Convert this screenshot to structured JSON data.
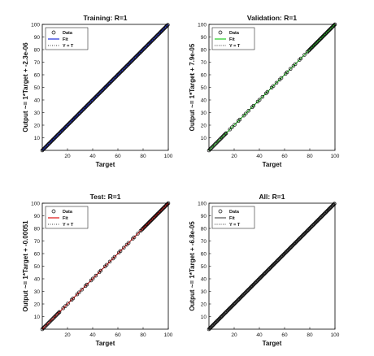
{
  "figure": {
    "background": "#ffffff"
  },
  "chart_data": [
    {
      "type": "scatter",
      "title": "Training: R=1",
      "xlabel": "Target",
      "ylabel": "Output ~= 1*Target + -2.3e-06",
      "xlim": [
        0,
        100
      ],
      "ylim": [
        0,
        100
      ],
      "xticks": [
        20,
        40,
        60,
        80,
        100
      ],
      "yticks": [
        10,
        20,
        30,
        40,
        50,
        60,
        70,
        80,
        90,
        100
      ],
      "grid": false,
      "legend": {
        "placement": "top-left",
        "entries": [
          "Data",
          "Fit",
          "Y = T"
        ]
      },
      "fit_color": "#1f2fdc",
      "fit": {
        "slope": 1,
        "intercept": -2.3e-06
      },
      "data_range": [
        0,
        100
      ],
      "data_density": "dense"
    },
    {
      "type": "scatter",
      "title": "Validation: R=1",
      "xlabel": "Target",
      "ylabel": "Output ~= 1*Target + 7.9e-05",
      "xlim": [
        0,
        100
      ],
      "ylim": [
        0,
        100
      ],
      "xticks": [
        20,
        40,
        60,
        80,
        100
      ],
      "yticks": [
        10,
        20,
        30,
        40,
        50,
        60,
        70,
        80,
        90,
        100
      ],
      "grid": false,
      "legend": {
        "placement": "top-left",
        "entries": [
          "Data",
          "Fit",
          "Y = T"
        ]
      },
      "fit_color": "#22cc22",
      "fit": {
        "slope": 1,
        "intercept": 7.9e-05
      },
      "data_range": [
        0,
        100
      ],
      "data_density": "sparse-mid"
    },
    {
      "type": "scatter",
      "title": "Test: R=1",
      "xlabel": "Target",
      "ylabel": "Output ~= 1*Target + -0.00051",
      "xlim": [
        0,
        100
      ],
      "ylim": [
        0,
        100
      ],
      "xticks": [
        20,
        40,
        60,
        80,
        100
      ],
      "yticks": [
        10,
        20,
        30,
        40,
        50,
        60,
        70,
        80,
        90,
        100
      ],
      "grid": false,
      "legend": {
        "placement": "top-left",
        "entries": [
          "Data",
          "Fit",
          "Y = T"
        ]
      },
      "fit_color": "#e01010",
      "fit": {
        "slope": 1,
        "intercept": -0.00051
      },
      "data_range": [
        0,
        100
      ],
      "data_density": "sparse-mid"
    },
    {
      "type": "scatter",
      "title": "All: R=1",
      "xlabel": "Target",
      "ylabel": "Output ~= 1*Target + -6.8e-05",
      "xlim": [
        0,
        100
      ],
      "ylim": [
        0,
        100
      ],
      "xticks": [
        20,
        40,
        60,
        80,
        100
      ],
      "yticks": [
        10,
        20,
        30,
        40,
        50,
        60,
        70,
        80,
        90,
        100
      ],
      "grid": false,
      "legend": {
        "placement": "top-left",
        "entries": [
          "Data",
          "Fit",
          "Y = T"
        ]
      },
      "fit_color": "#555555",
      "fit": {
        "slope": 1,
        "intercept": -6.8e-05
      },
      "data_range": [
        0,
        100
      ],
      "data_density": "dense"
    }
  ]
}
